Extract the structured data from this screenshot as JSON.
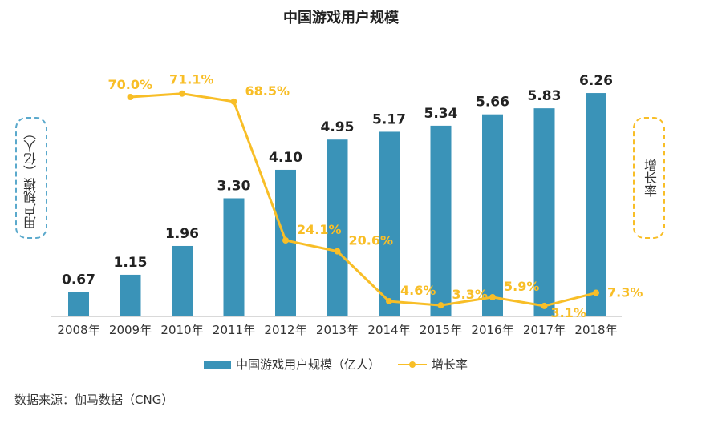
{
  "chart_data": {
    "type": "bar+line",
    "title": "中国游戏用户规模",
    "categories": [
      "2008年",
      "2009年",
      "2010年",
      "2011年",
      "2012年",
      "2013年",
      "2014年",
      "2015年",
      "2016年",
      "2017年",
      "2018年"
    ],
    "series": [
      {
        "name": "中国游戏用户规模（亿人）",
        "type": "bar",
        "color": "#3a93b8",
        "values": [
          0.67,
          1.15,
          1.96,
          3.3,
          4.1,
          4.95,
          5.17,
          5.34,
          5.66,
          5.83,
          6.26
        ],
        "labels": [
          "0.67",
          "1.15",
          "1.96",
          "3.30",
          "4.10",
          "4.95",
          "5.17",
          "5.34",
          "5.66",
          "5.83",
          "6.26"
        ]
      },
      {
        "name": "增长率",
        "type": "line",
        "color": "#f8be27",
        "values": [
          null,
          70.0,
          71.1,
          68.5,
          24.1,
          20.6,
          4.6,
          3.3,
          5.9,
          3.1,
          7.3
        ],
        "labels": [
          "",
          "70.0%",
          "71.1%",
          "68.5%",
          "24.1%",
          "20.6%",
          "4.6%",
          "3.3%",
          "5.9%",
          "3.1%",
          "7.3%"
        ]
      }
    ],
    "ylabel_left": "用户规模（亿人）",
    "ylabel_right": "增长率",
    "grid": false,
    "legend": "bottom"
  },
  "source": "数据来源：伽马数据（CNG）"
}
